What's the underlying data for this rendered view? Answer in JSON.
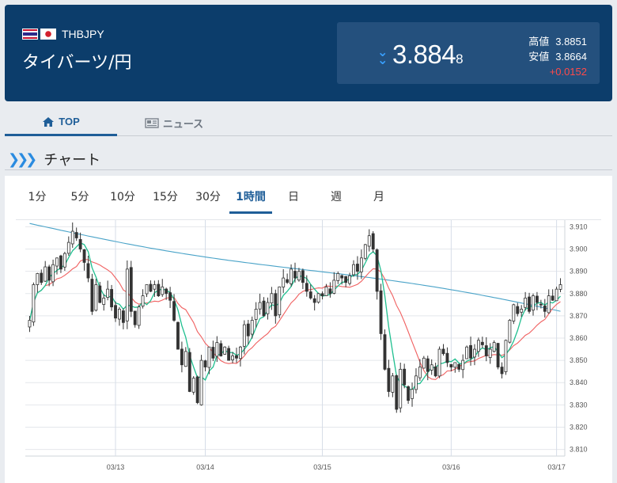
{
  "header": {
    "pair_code": "THBJPY",
    "pair_name": "タイバーツ/円",
    "price_main": "3.884",
    "price_small": "8",
    "high_label": "高値",
    "high_value": "3.8851",
    "low_label": "安値",
    "low_value": "3.8664",
    "change": "+0.0152",
    "change_color": "#ff4a4a",
    "direction": "down"
  },
  "tabs": [
    {
      "label": "TOP",
      "icon": "home-icon",
      "active": true
    },
    {
      "label": "ニュース",
      "icon": "newspaper-icon",
      "active": false
    }
  ],
  "section": {
    "title": "チャート",
    "icon": "double-chevron-icon"
  },
  "periods": [
    "1分",
    "5分",
    "10分",
    "15分",
    "30分",
    "1時間",
    "日",
    "週",
    "月"
  ],
  "active_period": "1時間",
  "chart_data": {
    "type": "candlestick",
    "x_labels": [
      "03/13",
      "03/14",
      "03/15",
      "03/16",
      "03/17"
    ],
    "y_ticks": [
      3.81,
      3.82,
      3.83,
      3.84,
      3.85,
      3.86,
      3.87,
      3.88,
      3.89,
      3.9,
      3.91
    ],
    "y_tick_labels": [
      "3.810",
      "3.820",
      "3.830",
      "3.840",
      "3.850",
      "3.860",
      "3.870",
      "3.880",
      "3.890",
      "3.900",
      "3.910"
    ],
    "ylim": [
      3.807,
      3.913
    ],
    "closes": [
      3.868,
      3.884,
      3.889,
      3.885,
      3.892,
      3.886,
      3.893,
      3.896,
      3.891,
      3.898,
      3.903,
      3.908,
      3.905,
      3.9,
      3.894,
      3.887,
      3.872,
      3.884,
      3.876,
      3.878,
      3.882,
      3.874,
      3.869,
      3.873,
      3.867,
      3.891,
      3.872,
      3.866,
      3.874,
      3.879,
      3.884,
      3.881,
      3.884,
      3.879,
      3.883,
      3.88,
      3.877,
      3.868,
      3.855,
      3.848,
      3.854,
      3.836,
      3.842,
      3.831,
      3.85,
      3.847,
      3.856,
      3.851,
      3.858,
      3.852,
      3.856,
      3.85,
      3.852,
      3.851,
      3.856,
      3.866,
      3.861,
      3.868,
      3.873,
      3.876,
      3.87,
      3.876,
      3.88,
      3.87,
      3.883,
      3.887,
      3.885,
      3.891,
      3.887,
      3.89,
      3.885,
      3.881,
      3.878,
      3.876,
      3.88,
      3.879,
      3.883,
      3.88,
      3.886,
      3.889,
      3.887,
      3.885,
      3.888,
      3.893,
      3.89,
      3.896,
      3.902,
      3.906,
      3.9,
      3.881,
      3.862,
      3.846,
      3.836,
      3.843,
      3.828,
      3.846,
      3.839,
      3.832,
      3.837,
      3.843,
      3.847,
      3.851,
      3.845,
      3.848,
      3.843,
      3.855,
      3.853,
      3.849,
      3.847,
      3.849,
      3.846,
      3.85,
      3.856,
      3.851,
      3.855,
      3.859,
      3.857,
      3.852,
      3.855,
      3.858,
      3.847,
      3.844,
      3.859,
      3.868,
      3.875,
      3.871,
      3.873,
      3.878,
      3.872,
      3.879,
      3.876,
      3.875,
      3.872,
      3.879,
      3.877,
      3.882,
      3.884
    ],
    "series": [
      {
        "name": "",
        "color": "#1fbf8f"
      },
      {
        "name": "",
        "color": "#f06060"
      },
      {
        "name": "",
        "color": "#4aa3c8"
      }
    ],
    "grid": true
  }
}
